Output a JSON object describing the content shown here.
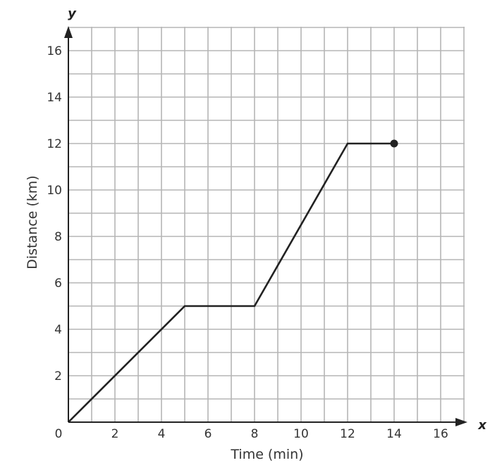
{
  "chart_data": {
    "type": "line",
    "xlabel": "Time (min)",
    "ylabel": "Distance (km)",
    "x_axis_letter": "x",
    "y_axis_letter": "y",
    "xlim": [
      0,
      17
    ],
    "ylim": [
      0,
      17
    ],
    "origin_label": "0",
    "x_ticks": [
      2,
      4,
      6,
      8,
      10,
      12,
      14,
      16
    ],
    "y_ticks": [
      2,
      4,
      6,
      8,
      10,
      12,
      14,
      16
    ],
    "grid": true,
    "series": [
      {
        "points": [
          {
            "x": 0,
            "y": 0
          },
          {
            "x": 5,
            "y": 5
          },
          {
            "x": 8,
            "y": 5
          },
          {
            "x": 12,
            "y": 12
          },
          {
            "x": 14,
            "y": 12
          }
        ],
        "end_marker": "closed-dot"
      }
    ],
    "colors": {
      "grid": "#b5b5b5",
      "axis": "#222222",
      "line": "#222222"
    }
  }
}
